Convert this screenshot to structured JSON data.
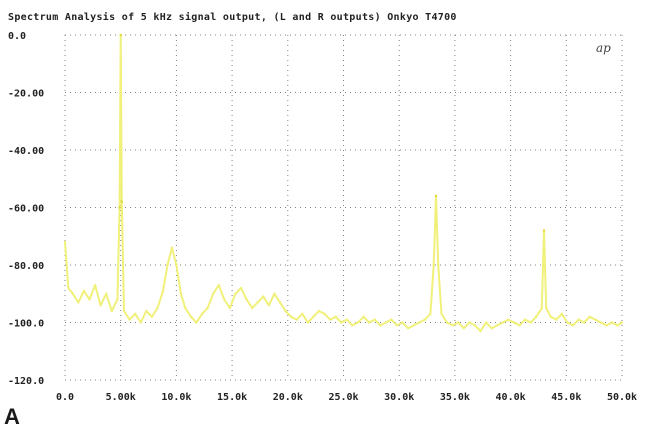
{
  "panel_label": "A",
  "logo_text": "ap",
  "chart_data": {
    "type": "line",
    "title": "Spectrum Analysis of 5 kHz signal output, (L and R outputs) Onkyo T4700",
    "xlabel": "",
    "ylabel": "",
    "xlim": [
      0,
      50000
    ],
    "ylim": [
      -120,
      0
    ],
    "x_tick_values": [
      0,
      5000,
      10000,
      15000,
      20000,
      25000,
      30000,
      35000,
      40000,
      45000,
      50000
    ],
    "x_tick_labels": [
      "0.0",
      "5.00k",
      "10.0k",
      "15.0k",
      "20.0k",
      "25.0k",
      "30.0k",
      "35.0k",
      "40.0k",
      "45.0k",
      "50.0k"
    ],
    "y_tick_values": [
      0,
      -20,
      -40,
      -60,
      -80,
      -100,
      -120
    ],
    "y_tick_labels": [
      "0.0",
      "-20.00",
      "-40.00",
      "-60.00",
      "-80.00",
      "-100.0",
      "-120.0"
    ],
    "grid": true,
    "colors": {
      "trace": "#f0f07a",
      "peak": "#dcd830",
      "grid": "#808080",
      "text": "#222222"
    },
    "series": [
      {
        "x": [
          0,
          300,
          700,
          1200,
          1700,
          2200,
          2700,
          3200,
          3700,
          4200,
          4700,
          4900,
          5000,
          5100,
          5300,
          5800,
          6300,
          6800,
          7300,
          7800,
          8300,
          8800,
          9200,
          9600,
          10000,
          10400,
          10800,
          11300,
          11800,
          12300,
          12800,
          13300,
          13800,
          14300,
          14800,
          15300,
          15800,
          16300,
          16800,
          17300,
          17800,
          18300,
          18800,
          19300,
          19800,
          20300,
          20800,
          21300,
          21800,
          22300,
          22800,
          23300,
          23800,
          24300,
          24800,
          25300,
          25800,
          26300,
          26800,
          27300,
          27800,
          28300,
          28800,
          29300,
          29800,
          30300,
          30800,
          31300,
          31800,
          32300,
          32800,
          33100,
          33300,
          33500,
          33800,
          34300,
          34800,
          35300,
          35800,
          36300,
          36800,
          37300,
          37800,
          38300,
          38800,
          39300,
          39800,
          40300,
          40800,
          41300,
          41800,
          42300,
          42800,
          43000,
          43200,
          43600,
          44100,
          44600,
          45100,
          45600,
          46100,
          46600,
          47100,
          47600,
          48100,
          48600,
          49100,
          49600,
          50000
        ],
        "y": [
          -72,
          -88,
          -90,
          -93,
          -89,
          -92,
          -87,
          -94,
          -90,
          -96,
          -92,
          -60,
          0,
          -58,
          -96,
          -99,
          -97,
          -100,
          -96,
          -98,
          -95,
          -89,
          -80,
          -74,
          -80,
          -90,
          -95,
          -98,
          -100,
          -97,
          -95,
          -90,
          -87,
          -92,
          -95,
          -90,
          -88,
          -92,
          -95,
          -93,
          -91,
          -94,
          -90,
          -93,
          -96,
          -98,
          -99,
          -97,
          -100,
          -98,
          -96,
          -97,
          -99,
          -98,
          -100,
          -99,
          -101,
          -100,
          -98,
          -100,
          -99,
          -101,
          -100,
          -99,
          -101,
          -100,
          -102,
          -101,
          -100,
          -99,
          -97,
          -80,
          -56,
          -80,
          -97,
          -100,
          -101,
          -100,
          -102,
          -100,
          -101,
          -103,
          -100,
          -102,
          -101,
          -100,
          -99,
          -100,
          -101,
          -99,
          -100,
          -98,
          -95,
          -68,
          -95,
          -98,
          -99,
          -97,
          -100,
          -101,
          -99,
          -100,
          -98,
          -99,
          -100,
          -101,
          -100,
          -101,
          -100
        ]
      }
    ]
  }
}
